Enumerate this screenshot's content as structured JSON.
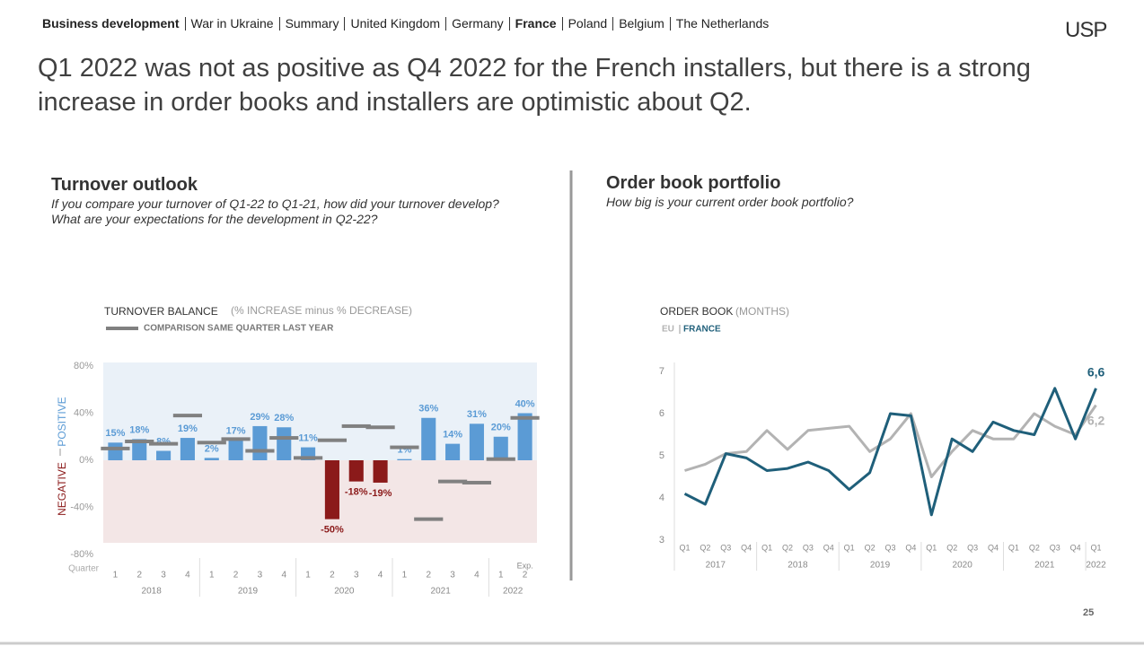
{
  "nav": [
    {
      "label": "Business development",
      "bold": true
    },
    {
      "label": "War in Ukraine",
      "bold": false
    },
    {
      "label": "Summary",
      "bold": false
    },
    {
      "label": "United Kingdom",
      "bold": false
    },
    {
      "label": "Germany",
      "bold": false
    },
    {
      "label": "France",
      "bold": true
    },
    {
      "label": "Poland",
      "bold": false
    },
    {
      "label": "Belgium",
      "bold": false
    },
    {
      "label": "The Netherlands",
      "bold": false
    }
  ],
  "logo": "USP",
  "headline": "Q1 2022 was not as positive as Q4 2022 for the French installers, but there is a strong increase in order books and installers are optimistic about Q2.",
  "page_number": "25",
  "chart_data": [
    {
      "type": "bar",
      "title": "Turnover outlook",
      "subtitle": [
        "If you compare your turnover of Q1-22 to Q1-21, how did your turnover develop?",
        "What are your expectations for the development in Q2-22?"
      ],
      "legend_note": "(% INCREASE minus % DECREASE)",
      "positive_label": "POSITIVE",
      "negative_label": "NEGATIVE",
      "x_label": "Quarter",
      "exp_label": "Exp.",
      "categories": [
        "1",
        "2",
        "3",
        "4",
        "1",
        "2",
        "3",
        "4",
        "1",
        "2",
        "3",
        "4",
        "1",
        "2",
        "3",
        "4",
        "1",
        "2"
      ],
      "years": [
        "2018",
        "2019",
        "2020",
        "2021",
        "2022"
      ],
      "positive_color": "#5b9bd5",
      "negative_color": "#8b1a1a",
      "series": [
        {
          "name": "TURNOVER BALANCE",
          "color": "#5b9bd5",
          "values": [
            15,
            18,
            8,
            19,
            2,
            17,
            29,
            28,
            11,
            -50,
            -18,
            -19,
            1,
            36,
            14,
            31,
            20,
            40
          ],
          "value_labels": [
            "15%",
            "18%",
            "8%",
            "19%",
            "2%",
            "17%",
            "29%",
            "28%",
            "11%",
            "-50%",
            "-18%",
            "-19%",
            "1%",
            "36%",
            "14%",
            "31%",
            "20%",
            "40%"
          ]
        },
        {
          "name": "COMPARISON SAME QUARTER LAST YEAR",
          "color": "#808080",
          "values": [
            10,
            16,
            14,
            38,
            15,
            18,
            8,
            19,
            2,
            17,
            29,
            28,
            11,
            -50,
            -18,
            -19,
            1,
            36
          ]
        }
      ],
      "ylim": [
        -80,
        80
      ],
      "yticks": [
        {
          "value": 80,
          "label": "80%"
        },
        {
          "value": 40,
          "label": "40%"
        },
        {
          "value": 0,
          "label": "0%"
        },
        {
          "value": -40,
          "label": "-40%"
        },
        {
          "value": -80,
          "label": "-80%"
        }
      ]
    },
    {
      "type": "line",
      "title": "Order book portfolio",
      "subtitle": [
        "How big is your current order book portfolio?"
      ],
      "legend_title": "ORDER BOOK",
      "legend_note": "(MONTHS)",
      "categories": [
        "Q1",
        "Q2",
        "Q3",
        "Q4",
        "Q1",
        "Q2",
        "Q3",
        "Q4",
        "Q1",
        "Q2",
        "Q3",
        "Q4",
        "Q1",
        "Q2",
        "Q3",
        "Q4",
        "Q1",
        "Q2",
        "Q3",
        "Q4",
        "Q1"
      ],
      "years": [
        "2017",
        "2018",
        "2019",
        "2020",
        "2021",
        "2022"
      ],
      "series": [
        {
          "name": "EU",
          "color": "#b3b3b3",
          "values": [
            4.65,
            4.8,
            5.05,
            5.1,
            5.6,
            5.15,
            5.6,
            5.65,
            5.7,
            5.1,
            5.4,
            6.0,
            4.5,
            5.1,
            5.6,
            5.4,
            5.4,
            6.0,
            5.7,
            5.5,
            6.2
          ],
          "end_label": "6,2"
        },
        {
          "name": "FRANCE",
          "color": "#1f5f7a",
          "values": [
            4.1,
            3.85,
            5.05,
            4.95,
            4.65,
            4.7,
            4.85,
            4.65,
            4.2,
            4.6,
            6.0,
            5.95,
            3.6,
            5.4,
            5.1,
            5.8,
            5.6,
            5.5,
            6.6,
            5.4,
            6.6
          ],
          "end_label": "6,6"
        }
      ],
      "ylim": [
        3,
        7
      ],
      "yticks": [
        3,
        4,
        5,
        6,
        7
      ]
    }
  ]
}
